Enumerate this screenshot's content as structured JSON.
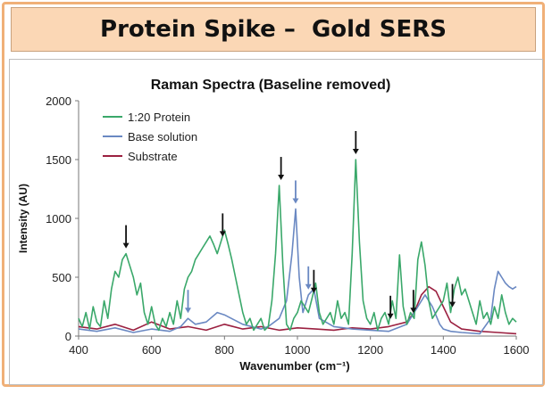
{
  "banner": {
    "title": "Protein Spike –  Gold SERS"
  },
  "chart_data": {
    "type": "line",
    "title": "Raman Spectra (Baseline removed)",
    "xlabel": "Wavenumber (cm⁻¹)",
    "ylabel": "Intensity (AU)",
    "xlim": [
      400,
      1600
    ],
    "ylim": [
      0,
      2000
    ],
    "xticks": [
      "400",
      "600",
      "800",
      "1000",
      "1200",
      "1400",
      "1600"
    ],
    "yticks": [
      "0",
      "500",
      "1000",
      "1500",
      "2000"
    ],
    "grid": false,
    "legend_position": "top-left",
    "series": [
      {
        "name": "1:20 Protein",
        "color": "#3aa86a",
        "x": [
          400,
          410,
          420,
          430,
          440,
          450,
          460,
          470,
          480,
          490,
          500,
          510,
          520,
          530,
          540,
          550,
          560,
          570,
          580,
          590,
          600,
          610,
          620,
          630,
          640,
          650,
          660,
          670,
          680,
          690,
          700,
          710,
          720,
          730,
          740,
          750,
          760,
          770,
          780,
          790,
          800,
          810,
          820,
          830,
          840,
          850,
          860,
          870,
          880,
          890,
          900,
          910,
          920,
          930,
          940,
          950,
          960,
          970,
          980,
          990,
          1000,
          1010,
          1020,
          1030,
          1040,
          1050,
          1060,
          1070,
          1080,
          1090,
          1100,
          1110,
          1120,
          1130,
          1140,
          1150,
          1160,
          1170,
          1180,
          1190,
          1200,
          1210,
          1220,
          1230,
          1240,
          1250,
          1260,
          1270,
          1280,
          1290,
          1300,
          1310,
          1320,
          1330,
          1340,
          1350,
          1360,
          1370,
          1380,
          1390,
          1400,
          1410,
          1420,
          1430,
          1440,
          1450,
          1460,
          1470,
          1480,
          1490,
          1500,
          1510,
          1520,
          1530,
          1540,
          1550,
          1560,
          1570,
          1580,
          1590,
          1600
        ],
        "y": [
          150,
          80,
          200,
          60,
          250,
          120,
          80,
          300,
          150,
          400,
          550,
          500,
          650,
          700,
          600,
          500,
          350,
          450,
          200,
          100,
          250,
          100,
          50,
          150,
          80,
          200,
          100,
          300,
          150,
          400,
          500,
          550,
          650,
          700,
          750,
          800,
          850,
          780,
          700,
          800,
          900,
          780,
          650,
          500,
          350,
          200,
          100,
          150,
          50,
          100,
          150,
          50,
          80,
          300,
          700,
          1280,
          600,
          100,
          50,
          150,
          200,
          300,
          250,
          200,
          320,
          450,
          200,
          100,
          150,
          200,
          100,
          300,
          150,
          200,
          100,
          700,
          1500,
          800,
          300,
          150,
          100,
          200,
          50,
          150,
          200,
          100,
          300,
          150,
          690,
          250,
          100,
          200,
          150,
          650,
          800,
          600,
          300,
          150,
          200,
          250,
          300,
          450,
          200,
          400,
          500,
          350,
          400,
          300,
          200,
          100,
          300,
          150,
          200,
          100,
          250,
          150,
          350,
          200,
          100,
          150,
          120
        ]
      },
      {
        "name": "Base solution",
        "color": "#6a88c2",
        "x": [
          400,
          450,
          500,
          550,
          600,
          650,
          680,
          700,
          720,
          750,
          780,
          800,
          850,
          900,
          920,
          950,
          970,
          985,
          995,
          1005,
          1015,
          1030,
          1045,
          1060,
          1100,
          1150,
          1200,
          1250,
          1300,
          1330,
          1350,
          1370,
          1390,
          1400,
          1420,
          1450,
          1500,
          1530,
          1540,
          1550,
          1560,
          1570,
          1580,
          1590,
          1600
        ],
        "y": [
          60,
          40,
          70,
          30,
          60,
          40,
          80,
          150,
          100,
          120,
          200,
          180,
          100,
          60,
          80,
          150,
          300,
          700,
          1080,
          500,
          200,
          350,
          400,
          150,
          80,
          60,
          50,
          40,
          100,
          250,
          350,
          250,
          100,
          60,
          40,
          30,
          20,
          150,
          400,
          550,
          500,
          450,
          420,
          400,
          420
        ]
      },
      {
        "name": "Substrate",
        "color": "#9b2040",
        "x": [
          400,
          450,
          500,
          550,
          600,
          650,
          700,
          750,
          800,
          850,
          900,
          950,
          1000,
          1050,
          1100,
          1150,
          1200,
          1250,
          1300,
          1320,
          1340,
          1360,
          1380,
          1400,
          1420,
          1450,
          1500,
          1550,
          1600
        ],
        "y": [
          80,
          60,
          100,
          50,
          120,
          60,
          80,
          50,
          100,
          60,
          80,
          50,
          70,
          60,
          50,
          70,
          60,
          80,
          120,
          200,
          350,
          420,
          380,
          250,
          120,
          60,
          40,
          30,
          20
        ]
      }
    ],
    "annotations": {
      "peak_arrows_black": [
        530,
        795,
        955,
        1045,
        1160,
        1255,
        1318,
        1425
      ],
      "peak_arrows_blue": [
        700,
        995,
        1030
      ]
    }
  }
}
